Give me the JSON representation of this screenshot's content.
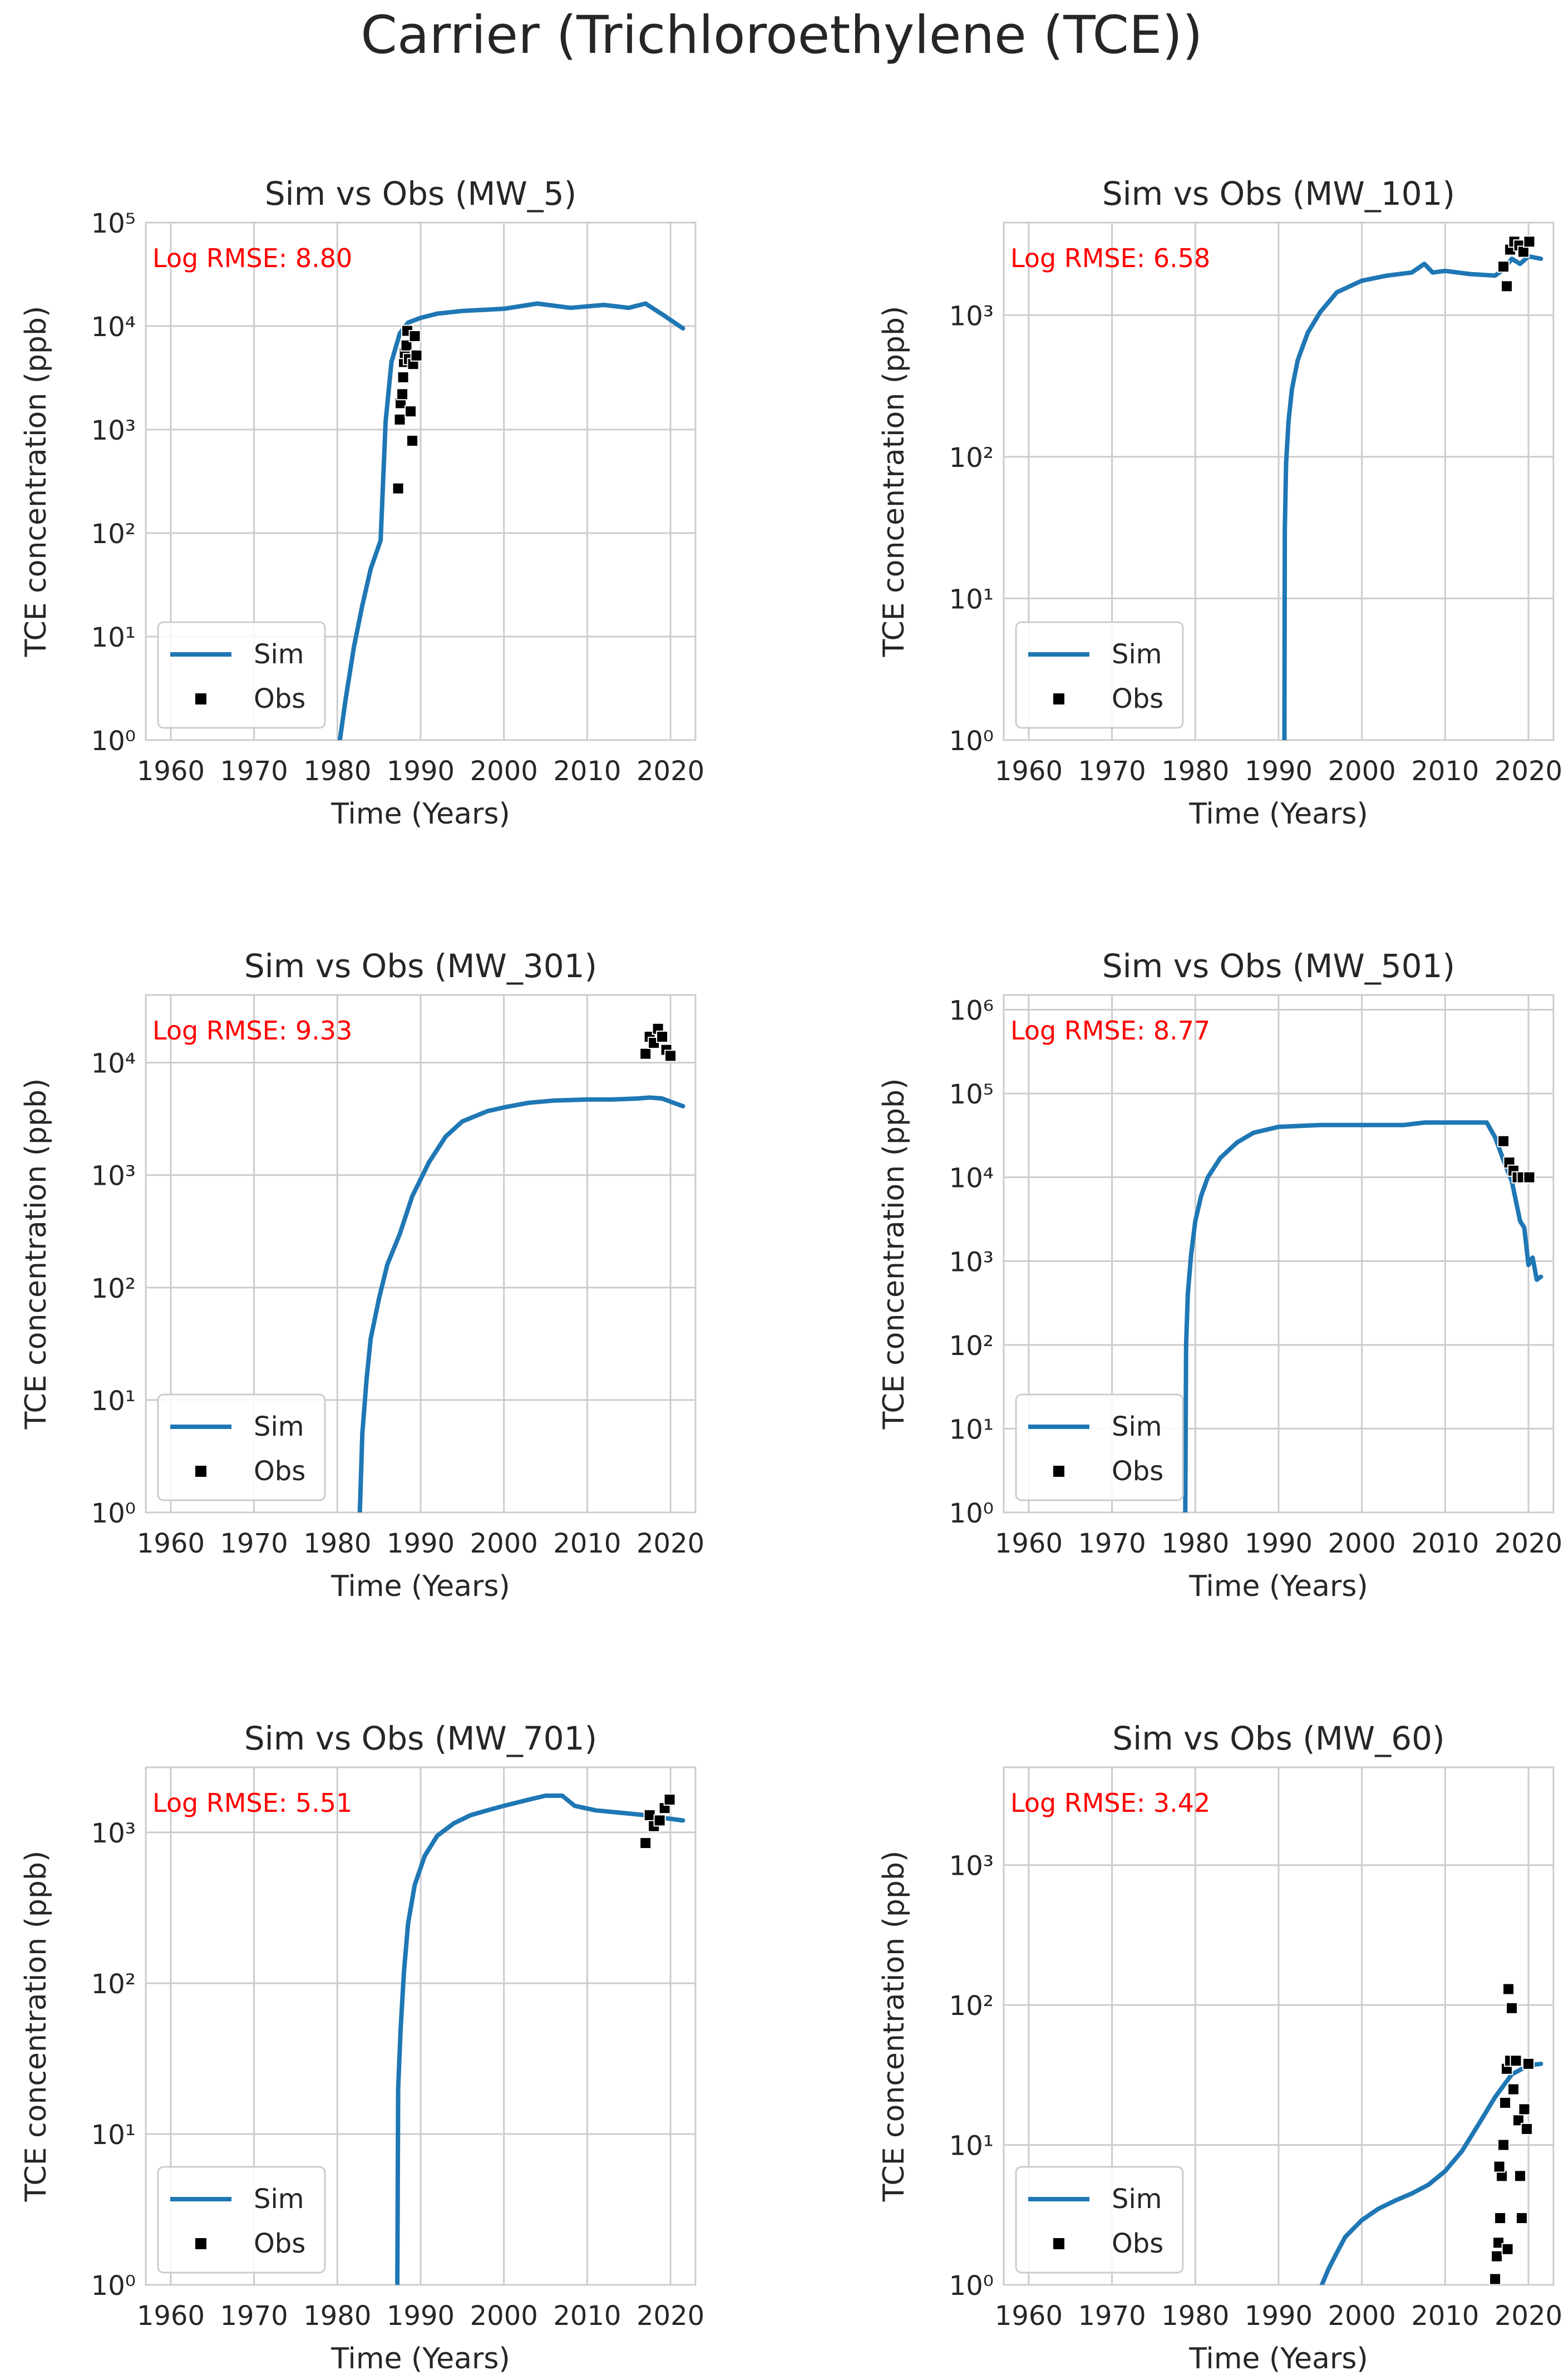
{
  "figure_title": "Carrier (Trichloroethylene (TCE))",
  "chart_data": [
    {
      "type": "line",
      "title": "Sim vs Obs (MW_5)",
      "xlabel": "Time (Years)",
      "ylabel": "TCE concentration (ppb)",
      "yscale": "log",
      "xlim": [
        1957,
        2023
      ],
      "ylim": [
        1,
        100000
      ],
      "xticks": [
        1960,
        1970,
        1980,
        1990,
        2000,
        2010,
        2020
      ],
      "yticks": [
        1,
        10,
        100,
        1000,
        10000,
        100000
      ],
      "annotation": "Log RMSE: 8.80",
      "legend": {
        "position": "lower-left",
        "entries": [
          "Sim",
          "Obs"
        ]
      },
      "series": [
        {
          "name": "Sim",
          "kind": "line",
          "color": "#1f77b4",
          "x": [
            1980.3,
            1981,
            1982,
            1983,
            1984,
            1985.2,
            1985.8,
            1986.5,
            1987.5,
            1988.5,
            1990,
            1992,
            1995,
            2000,
            2004,
            2008,
            2012,
            2015,
            2017,
            2019,
            2021.5
          ],
          "y": [
            1,
            2.5,
            8,
            20,
            45,
            85,
            1200,
            4500,
            8500,
            10800,
            12000,
            13200,
            14000,
            14700,
            16500,
            15000,
            16000,
            15000,
            16500,
            13000,
            9500
          ]
        },
        {
          "name": "Obs",
          "kind": "scatter",
          "color": "#000000",
          "x": [
            1987.3,
            1987.5,
            1987.6,
            1987.8,
            1987.9,
            1988,
            1988.1,
            1988.3,
            1988.4,
            1988.6,
            1988.8,
            1989,
            1989.1,
            1989.3,
            1989.5
          ],
          "y": [
            270,
            1250,
            1800,
            2200,
            3200,
            4500,
            5500,
            6500,
            9000,
            4800,
            1500,
            780,
            4300,
            8000,
            5200
          ]
        }
      ]
    },
    {
      "type": "line",
      "title": "Sim vs Obs (MW_101)",
      "xlabel": "Time (Years)",
      "ylabel": "TCE concentration (ppb)",
      "yscale": "log",
      "xlim": [
        1957,
        2023
      ],
      "ylim": [
        1,
        4500
      ],
      "xticks": [
        1960,
        1970,
        1980,
        1990,
        2000,
        2010,
        2020
      ],
      "yticks": [
        1,
        10,
        100,
        1000
      ],
      "annotation": "Log RMSE: 6.58",
      "legend": {
        "position": "lower-left",
        "entries": [
          "Sim",
          "Obs"
        ]
      },
      "series": [
        {
          "name": "Sim",
          "kind": "line",
          "color": "#1f77b4",
          "x": [
            1990.7,
            1990.75,
            1990.9,
            1991.2,
            1991.6,
            1992.3,
            1993.5,
            1995,
            1997,
            2000,
            2003,
            2006,
            2007.5,
            2008.5,
            2010,
            2013,
            2016,
            2017,
            2018,
            2019,
            2020,
            2021.5
          ],
          "y": [
            1,
            30,
            90,
            180,
            300,
            480,
            750,
            1050,
            1450,
            1750,
            1900,
            2000,
            2300,
            2000,
            2050,
            1950,
            1900,
            2100,
            2500,
            2300,
            2600,
            2500
          ]
        },
        {
          "name": "Obs",
          "kind": "scatter",
          "color": "#000000",
          "x": [
            2017,
            2017.4,
            2017.8,
            2018.3,
            2018.9,
            2019.4,
            2020.1
          ],
          "y": [
            2200,
            1600,
            2900,
            3300,
            3100,
            2800,
            3300
          ]
        }
      ]
    },
    {
      "type": "line",
      "title": "Sim vs Obs (MW_301)",
      "xlabel": "Time (Years)",
      "ylabel": "TCE concentration (ppb)",
      "yscale": "log",
      "xlim": [
        1957,
        2023
      ],
      "ylim": [
        1,
        40000
      ],
      "xticks": [
        1960,
        1970,
        1980,
        1990,
        2000,
        2010,
        2020
      ],
      "yticks": [
        1,
        10,
        100,
        1000,
        10000
      ],
      "annotation": "Log RMSE: 9.33",
      "legend": {
        "position": "lower-left",
        "entries": [
          "Sim",
          "Obs"
        ]
      },
      "series": [
        {
          "name": "Sim",
          "kind": "line",
          "color": "#1f77b4",
          "x": [
            1982.7,
            1983,
            1983.5,
            1984,
            1985,
            1986,
            1987.5,
            1989,
            1991,
            1993,
            1995,
            1998,
            2000,
            2003,
            2006,
            2010,
            2013,
            2016,
            2017.5,
            2019,
            2020,
            2021.5
          ],
          "y": [
            1,
            5,
            15,
            35,
            80,
            160,
            300,
            650,
            1300,
            2200,
            3000,
            3700,
            4000,
            4400,
            4600,
            4700,
            4700,
            4800,
            4900,
            4800,
            4500,
            4100
          ]
        },
        {
          "name": "Obs",
          "kind": "scatter",
          "color": "#000000",
          "x": [
            2017,
            2017.5,
            2018,
            2018.5,
            2019,
            2019.5,
            2020
          ],
          "y": [
            12000,
            17000,
            15000,
            20000,
            17000,
            13000,
            11500
          ]
        }
      ]
    },
    {
      "type": "line",
      "title": "Sim vs Obs (MW_501)",
      "xlabel": "Time (Years)",
      "ylabel": "TCE concentration (ppb)",
      "yscale": "log",
      "xlim": [
        1957,
        2023
      ],
      "ylim": [
        1,
        1500000
      ],
      "xticks": [
        1960,
        1970,
        1980,
        1990,
        2000,
        2010,
        2020
      ],
      "yticks": [
        1,
        10,
        100,
        1000,
        10000,
        100000,
        1000000
      ],
      "annotation": "Log RMSE: 8.77",
      "legend": {
        "position": "lower-left",
        "entries": [
          "Sim",
          "Obs"
        ]
      },
      "series": [
        {
          "name": "Sim",
          "kind": "line",
          "color": "#1f77b4",
          "x": [
            1978.8,
            1978.9,
            1979.1,
            1979.5,
            1980,
            1980.7,
            1981.5,
            1983,
            1985,
            1987,
            1990,
            1995,
            2000,
            2005,
            2007.5,
            2010,
            2013,
            2015,
            2016,
            2017,
            2018,
            2019,
            2019.5,
            2020,
            2020.5,
            2021,
            2021.5
          ],
          "y": [
            1,
            100,
            400,
            1200,
            3000,
            6000,
            10000,
            17000,
            26000,
            34000,
            40000,
            42000,
            42000,
            42000,
            45000,
            45000,
            45000,
            45000,
            30000,
            16000,
            9000,
            3000,
            2500,
            900,
            1100,
            600,
            650
          ]
        },
        {
          "name": "Obs",
          "kind": "scatter",
          "color": "#000000",
          "x": [
            2017,
            2017.7,
            2018.2,
            2018.7,
            2019.3,
            2020.1
          ],
          "y": [
            27000,
            15000,
            12000,
            10000,
            10000,
            10000
          ]
        }
      ]
    },
    {
      "type": "line",
      "title": "Sim vs Obs (MW_701)",
      "xlabel": "Time (Years)",
      "ylabel": "TCE concentration (ppb)",
      "yscale": "log",
      "xlim": [
        1957,
        2023
      ],
      "ylim": [
        1,
        2700
      ],
      "xticks": [
        1960,
        1970,
        1980,
        1990,
        2000,
        2010,
        2020
      ],
      "yticks": [
        1,
        10,
        100,
        1000
      ],
      "annotation": "Log RMSE: 5.51",
      "legend": {
        "position": "lower-left",
        "entries": [
          "Sim",
          "Obs"
        ]
      },
      "series": [
        {
          "name": "Sim",
          "kind": "line",
          "color": "#1f77b4",
          "x": [
            1987.2,
            1987.3,
            1987.6,
            1988,
            1988.5,
            1989.3,
            1990.5,
            1992,
            1994,
            1996,
            1998,
            2000,
            2003,
            2005,
            2007,
            2008.5,
            2011,
            2014,
            2017,
            2019,
            2021.5
          ],
          "y": [
            1,
            20,
            50,
            120,
            250,
            450,
            700,
            950,
            1150,
            1300,
            1400,
            1500,
            1650,
            1750,
            1750,
            1500,
            1400,
            1350,
            1300,
            1250,
            1200
          ]
        },
        {
          "name": "Obs",
          "kind": "scatter",
          "color": "#000000",
          "x": [
            2017,
            2017.5,
            2018,
            2018.7,
            2019.3,
            2019.9
          ],
          "y": [
            850,
            1300,
            1100,
            1200,
            1450,
            1650
          ]
        }
      ]
    },
    {
      "type": "line",
      "title": "Sim vs Obs (MW_60)",
      "xlabel": "Time (Years)",
      "ylabel": "TCE concentration (ppb)",
      "yscale": "log",
      "xlim": [
        1957,
        2023
      ],
      "ylim": [
        1,
        5000
      ],
      "xticks": [
        1960,
        1970,
        1980,
        1990,
        2000,
        2010,
        2020
      ],
      "yticks": [
        1,
        10,
        100,
        1000
      ],
      "annotation": "Log RMSE: 3.42",
      "legend": {
        "position": "lower-left",
        "entries": [
          "Sim",
          "Obs"
        ]
      },
      "series": [
        {
          "name": "Sim",
          "kind": "line",
          "color": "#1f77b4",
          "x": [
            1995.2,
            1996,
            1997,
            1998,
            2000,
            2002,
            2004,
            2006,
            2008,
            2010,
            2012,
            2014,
            2016,
            2018,
            2020,
            2021.5
          ],
          "y": [
            1,
            1.3,
            1.7,
            2.2,
            2.9,
            3.5,
            4,
            4.5,
            5.2,
            6.5,
            9,
            14,
            22,
            32,
            37,
            38
          ]
        },
        {
          "name": "Obs",
          "kind": "scatter",
          "color": "#000000",
          "x": [
            2016,
            2016.2,
            2016.4,
            2016.6,
            2016.8,
            2017,
            2017.2,
            2017.4,
            2017.6,
            2017.8,
            2018,
            2018.2,
            2018.5,
            2018.8,
            2019,
            2019.2,
            2019.5,
            2019.8,
            2020,
            2016.5,
            2017.5
          ],
          "y": [
            1.1,
            1.6,
            2,
            3,
            6,
            10,
            20,
            35,
            130,
            40,
            95,
            25,
            40,
            15,
            6,
            3,
            18,
            13,
            38,
            7,
            1.8
          ]
        }
      ]
    }
  ]
}
